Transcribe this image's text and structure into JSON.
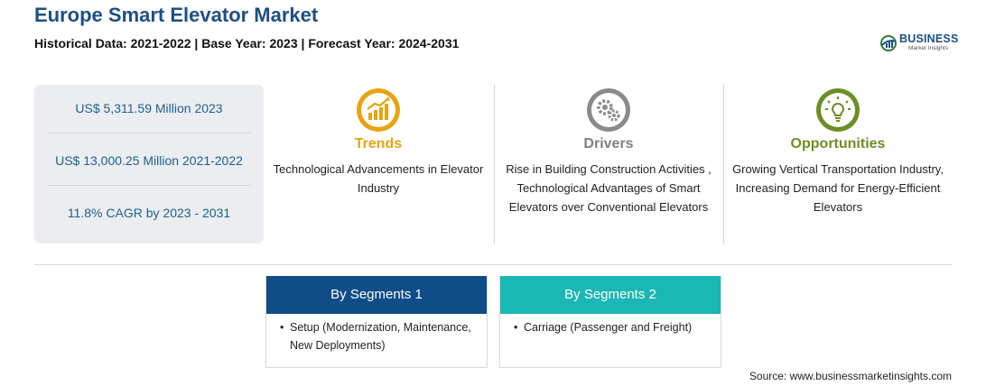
{
  "header": {
    "title": "Europe Smart Elevator Market",
    "subtitle": "Historical Data: 2021-2022 | Base Year: 2023 | Forecast Year: 2024-2031"
  },
  "logo": {
    "name": "BUSINESS",
    "tagline": "Market Insights",
    "icon": "globe-logo-icon"
  },
  "stats": [
    "US$ 5,311.59 Million 2023",
    "US$ 13,000.25 Million 2021-2022",
    "11.8% CAGR by 2023 - 2031"
  ],
  "columns": {
    "trends": {
      "heading": "Trends",
      "icon": "growth-chart-icon",
      "color": "#e8a311",
      "text": "Technological Advancements in Elevator Industry"
    },
    "drivers": {
      "heading": "Drivers",
      "icon": "gears-icon",
      "color": "#808080",
      "text": "Rise in Building Construction Activities , Technological Advantages of Smart Elevators over Conventional Elevators"
    },
    "opportunities": {
      "heading": "Opportunities",
      "icon": "lightbulb-icon",
      "color": "#6b8e23",
      "text": "Growing Vertical Transportation Industry, Increasing Demand for Energy-Efficient Elevators"
    }
  },
  "segments": [
    {
      "title": "By Segments 1",
      "color": "#0f4c88",
      "items": [
        "Setup (Modernization, Maintenance, New Deployments)"
      ]
    },
    {
      "title": "By Segments 2",
      "color": "#1ab7b4",
      "items": [
        "Carriage (Passenger and Freight)"
      ]
    }
  ],
  "source": "Source: www.businessmarketinsights.com"
}
